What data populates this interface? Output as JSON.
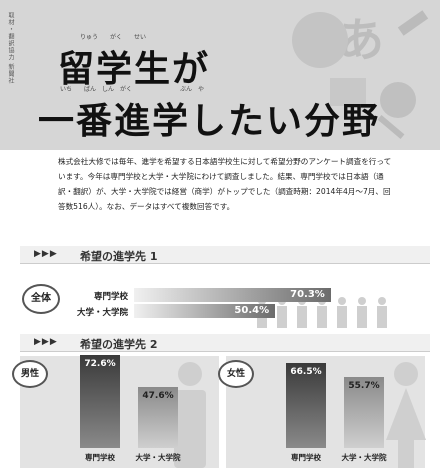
{
  "header": {
    "credit": "取材・翻訳協力 新聞社",
    "title_line1": "留学生が",
    "title_line2": "一番進学したい分野",
    "ruby1": "りゅう　　がく　　せい",
    "ruby2": "いち　　ばん　しん　がく　　　　　　　　ぶん　や",
    "deco_text": "あ"
  },
  "intro": "株式会社大修では毎年、進学を希望する日本語学校生に対して希望分野のアンケート調査を行っています。今年は専門学校と大学・大学院にわけて調査しました。結果、専門学校では日本語（通訳・翻訳）が、大学・大学院では経営（商学）がトップでした（調査時期：2014年4月〜7月、回答数516人）。なお、データはすべて複数回答です。",
  "section1": {
    "arrows": "▶▶▶",
    "title": "希望の進学先 1",
    "bubble": "全体"
  },
  "section2": {
    "arrows": "▶▶▶",
    "title": "希望の進学先 2"
  },
  "chart_data": [
    {
      "type": "bar",
      "orientation": "horizontal",
      "title": "希望の進学先 1",
      "group": "全体",
      "categories": [
        "専門学校",
        "大学・大学院"
      ],
      "values": [
        70.3,
        50.4
      ],
      "labels": [
        "70.3%",
        "50.4%"
      ],
      "unit": "%"
    },
    {
      "type": "bar",
      "title": "希望の進学先 2",
      "group": "男性",
      "categories": [
        "専門学校",
        "大学・大学院"
      ],
      "values": [
        72.6,
        47.6
      ],
      "labels": [
        "72.6%",
        "47.6%"
      ],
      "unit": "%"
    },
    {
      "type": "bar",
      "title": "希望の進学先 2",
      "group": "女性",
      "categories": [
        "専門学校",
        "大学・大学院"
      ],
      "values": [
        66.5,
        55.7
      ],
      "labels": [
        "66.5%",
        "55.7%"
      ],
      "unit": "%"
    }
  ],
  "colors": {
    "dark": "#3a3a3a",
    "light": "#9a9a9a",
    "panel": "#e3e3e3"
  }
}
